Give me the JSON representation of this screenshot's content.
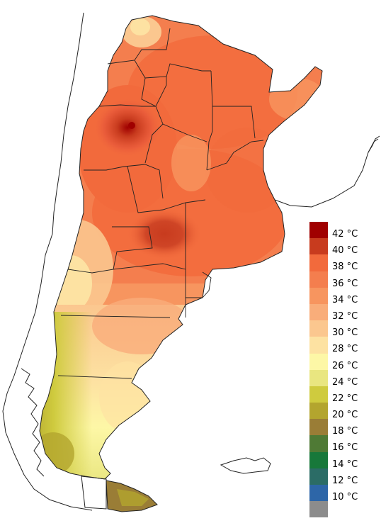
{
  "legend": {
    "unit": "°C",
    "classes": [
      {
        "color": "#a00000",
        "label": "42 °C"
      },
      {
        "color": "#c83b1e",
        "label": "40 °C"
      },
      {
        "color": "#f26a3c",
        "label": "38 °C"
      },
      {
        "color": "#f47e4e",
        "label": "36 °C"
      },
      {
        "color": "#f7955f",
        "label": "34 °C"
      },
      {
        "color": "#f9ad7a",
        "label": "32 °C"
      },
      {
        "color": "#fbc78f",
        "label": "30 °C"
      },
      {
        "color": "#fde2a2",
        "label": "28 °C"
      },
      {
        "color": "#fdf7a6",
        "label": "26 °C"
      },
      {
        "color": "#e9e680",
        "label": "24 °C"
      },
      {
        "color": "#cfcb3e",
        "label": "22 °C"
      },
      {
        "color": "#b3a52e",
        "label": "20 °C"
      },
      {
        "color": "#9a7d36",
        "label": "18 °C"
      },
      {
        "color": "#4f7a35",
        "label": "16 °C"
      },
      {
        "color": "#17783a",
        "label": "14 °C"
      },
      {
        "color": "#2b6c66",
        "label": "12 °C"
      },
      {
        "color": "#2d66a8",
        "label": "10 °C"
      },
      {
        "color": "#8c8c8c",
        "label": ""
      }
    ]
  },
  "colors": {
    "outline": "#222222",
    "land_outside": "#ffffff"
  }
}
